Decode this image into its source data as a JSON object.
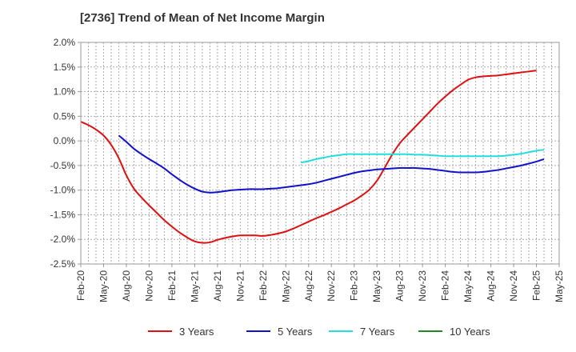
{
  "chart_data": {
    "type": "line",
    "title": "[2736]  Trend of Mean of Net Income Margin",
    "xlabel": "",
    "ylabel": "",
    "x_ticks": [
      "Feb-20",
      "May-20",
      "Aug-20",
      "Nov-20",
      "Feb-21",
      "May-21",
      "Aug-21",
      "Nov-21",
      "Feb-22",
      "May-22",
      "Aug-22",
      "Nov-22",
      "Feb-23",
      "May-23",
      "Aug-23",
      "Nov-23",
      "Feb-24",
      "May-24",
      "Aug-24",
      "Nov-24",
      "Feb-25",
      "May-25"
    ],
    "y_ticks": [
      "2.0%",
      "1.5%",
      "1.0%",
      "0.5%",
      "0.0%",
      "-0.5%",
      "-1.0%",
      "-1.5%",
      "-2.0%",
      "-2.5%"
    ],
    "ylim": [
      -2.5,
      2.0
    ],
    "x_range": [
      "Feb-20",
      "May-25"
    ],
    "grid": true,
    "grid_style": "dashed",
    "legend_position": "bottom",
    "series": [
      {
        "name": "3 Years",
        "color": "#dd1111",
        "points": [
          [
            "Feb-20",
            0.39
          ],
          [
            "Mar-20",
            0.32
          ],
          [
            "Apr-20",
            0.23
          ],
          [
            "May-20",
            0.11
          ],
          [
            "Jun-20",
            -0.08
          ],
          [
            "Jul-20",
            -0.35
          ],
          [
            "Aug-20",
            -0.7
          ],
          [
            "Sep-20",
            -0.97
          ],
          [
            "Oct-20",
            -1.15
          ],
          [
            "Nov-20",
            -1.31
          ],
          [
            "Dec-20",
            -1.46
          ],
          [
            "Jan-21",
            -1.61
          ],
          [
            "Feb-21",
            -1.74
          ],
          [
            "Mar-21",
            -1.86
          ],
          [
            "Apr-21",
            -1.96
          ],
          [
            "May-21",
            -2.04
          ],
          [
            "Jun-21",
            -2.07
          ],
          [
            "Jul-21",
            -2.06
          ],
          [
            "Aug-21",
            -2.01
          ],
          [
            "Sep-21",
            -1.97
          ],
          [
            "Oct-21",
            -1.94
          ],
          [
            "Nov-21",
            -1.92
          ],
          [
            "Dec-21",
            -1.92
          ],
          [
            "Jan-22",
            -1.92
          ],
          [
            "Feb-22",
            -1.93
          ],
          [
            "Mar-22",
            -1.91
          ],
          [
            "Apr-22",
            -1.88
          ],
          [
            "May-22",
            -1.84
          ],
          [
            "Jun-22",
            -1.78
          ],
          [
            "Jul-22",
            -1.71
          ],
          [
            "Aug-22",
            -1.64
          ],
          [
            "Sep-22",
            -1.57
          ],
          [
            "Oct-22",
            -1.51
          ],
          [
            "Nov-22",
            -1.44
          ],
          [
            "Dec-22",
            -1.37
          ],
          [
            "Jan-23",
            -1.29
          ],
          [
            "Feb-23",
            -1.21
          ],
          [
            "Mar-23",
            -1.11
          ],
          [
            "Apr-23",
            -0.99
          ],
          [
            "May-23",
            -0.81
          ],
          [
            "Jun-23",
            -0.55
          ],
          [
            "Jul-23",
            -0.28
          ],
          [
            "Aug-23",
            -0.05
          ],
          [
            "Sep-23",
            0.12
          ],
          [
            "Oct-23",
            0.28
          ],
          [
            "Nov-23",
            0.44
          ],
          [
            "Dec-23",
            0.6
          ],
          [
            "Jan-24",
            0.76
          ],
          [
            "Feb-24",
            0.9
          ],
          [
            "Mar-24",
            1.03
          ],
          [
            "Apr-24",
            1.14
          ],
          [
            "May-24",
            1.24
          ],
          [
            "Jun-24",
            1.29
          ],
          [
            "Jul-24",
            1.31
          ],
          [
            "Aug-24",
            1.32
          ],
          [
            "Sep-24",
            1.33
          ],
          [
            "Oct-24",
            1.35
          ],
          [
            "Nov-24",
            1.37
          ],
          [
            "Dec-24",
            1.39
          ],
          [
            "Jan-25",
            1.41
          ],
          [
            "Feb-25",
            1.43
          ]
        ]
      },
      {
        "name": "5 Years",
        "color": "#1111cc",
        "points": [
          [
            "Jul-20",
            0.11
          ],
          [
            "Aug-20",
            -0.02
          ],
          [
            "Sep-20",
            -0.16
          ],
          [
            "Oct-20",
            -0.27
          ],
          [
            "Nov-20",
            -0.37
          ],
          [
            "Dec-20",
            -0.46
          ],
          [
            "Jan-21",
            -0.56
          ],
          [
            "Feb-21",
            -0.68
          ],
          [
            "Mar-21",
            -0.79
          ],
          [
            "Apr-21",
            -0.89
          ],
          [
            "May-21",
            -0.97
          ],
          [
            "Jun-21",
            -1.03
          ],
          [
            "Jul-21",
            -1.05
          ],
          [
            "Aug-21",
            -1.04
          ],
          [
            "Sep-21",
            -1.02
          ],
          [
            "Oct-21",
            -1.0
          ],
          [
            "Nov-21",
            -0.99
          ],
          [
            "Dec-21",
            -0.98
          ],
          [
            "Jan-22",
            -0.98
          ],
          [
            "Feb-22",
            -0.98
          ],
          [
            "Mar-22",
            -0.97
          ],
          [
            "Apr-22",
            -0.96
          ],
          [
            "May-22",
            -0.94
          ],
          [
            "Jun-22",
            -0.92
          ],
          [
            "Jul-22",
            -0.9
          ],
          [
            "Aug-22",
            -0.88
          ],
          [
            "Sep-22",
            -0.85
          ],
          [
            "Oct-22",
            -0.81
          ],
          [
            "Nov-22",
            -0.77
          ],
          [
            "Dec-22",
            -0.73
          ],
          [
            "Jan-23",
            -0.69
          ],
          [
            "Feb-23",
            -0.65
          ],
          [
            "Mar-23",
            -0.62
          ],
          [
            "Apr-23",
            -0.6
          ],
          [
            "May-23",
            -0.58
          ],
          [
            "Jun-23",
            -0.57
          ],
          [
            "Jul-23",
            -0.56
          ],
          [
            "Aug-23",
            -0.55
          ],
          [
            "Sep-23",
            -0.55
          ],
          [
            "Oct-23",
            -0.55
          ],
          [
            "Nov-23",
            -0.56
          ],
          [
            "Dec-23",
            -0.57
          ],
          [
            "Jan-24",
            -0.59
          ],
          [
            "Feb-24",
            -0.61
          ],
          [
            "Mar-24",
            -0.63
          ],
          [
            "Apr-24",
            -0.64
          ],
          [
            "May-24",
            -0.64
          ],
          [
            "Jun-24",
            -0.64
          ],
          [
            "Jul-24",
            -0.63
          ],
          [
            "Aug-24",
            -0.61
          ],
          [
            "Sep-24",
            -0.59
          ],
          [
            "Oct-24",
            -0.56
          ],
          [
            "Nov-24",
            -0.53
          ],
          [
            "Dec-24",
            -0.5
          ],
          [
            "Jan-25",
            -0.46
          ],
          [
            "Feb-25",
            -0.42
          ],
          [
            "Mar-25",
            -0.37
          ]
        ]
      },
      {
        "name": "7 Years",
        "color": "#22dddd",
        "points": [
          [
            "Jul-22",
            -0.44
          ],
          [
            "Aug-22",
            -0.41
          ],
          [
            "Sep-22",
            -0.37
          ],
          [
            "Oct-22",
            -0.34
          ],
          [
            "Nov-22",
            -0.31
          ],
          [
            "Dec-22",
            -0.29
          ],
          [
            "Jan-23",
            -0.27
          ],
          [
            "Feb-23",
            -0.27
          ],
          [
            "Mar-23",
            -0.27
          ],
          [
            "Apr-23",
            -0.27
          ],
          [
            "May-23",
            -0.27
          ],
          [
            "Jun-23",
            -0.27
          ],
          [
            "Jul-23",
            -0.27
          ],
          [
            "Aug-23",
            -0.27
          ],
          [
            "Sep-23",
            -0.27
          ],
          [
            "Oct-23",
            -0.28
          ],
          [
            "Nov-23",
            -0.28
          ],
          [
            "Dec-23",
            -0.29
          ],
          [
            "Jan-24",
            -0.3
          ],
          [
            "Feb-24",
            -0.31
          ],
          [
            "Mar-24",
            -0.31
          ],
          [
            "Apr-24",
            -0.31
          ],
          [
            "May-24",
            -0.31
          ],
          [
            "Jun-24",
            -0.31
          ],
          [
            "Jul-24",
            -0.31
          ],
          [
            "Aug-24",
            -0.31
          ],
          [
            "Sep-24",
            -0.31
          ],
          [
            "Oct-24",
            -0.3
          ],
          [
            "Nov-24",
            -0.28
          ],
          [
            "Dec-24",
            -0.26
          ],
          [
            "Jan-25",
            -0.23
          ],
          [
            "Feb-25",
            -0.2
          ],
          [
            "Mar-25",
            -0.18
          ]
        ]
      },
      {
        "name": "10 Years",
        "color": "#228822",
        "points": []
      }
    ]
  }
}
